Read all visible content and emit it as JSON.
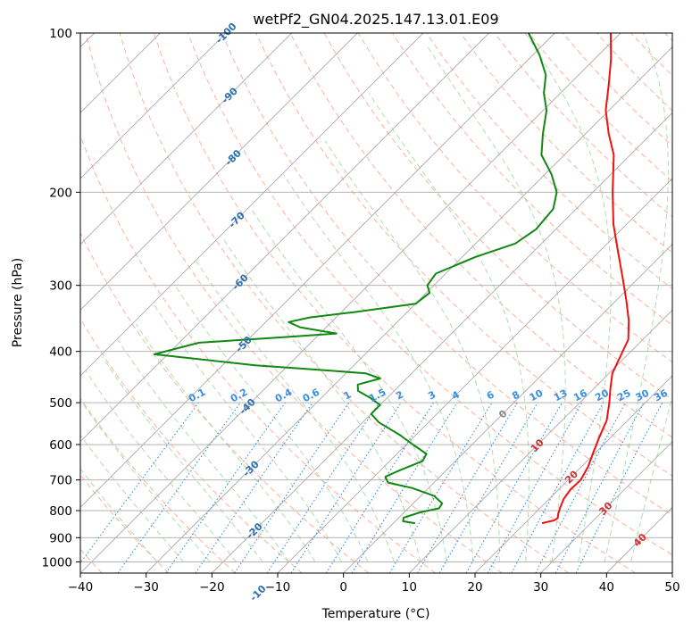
{
  "chart_data": {
    "type": "skew-t",
    "title": "wetPf2_GN04.2025.147.13.01.E09",
    "xlabel": "Temperature (°C)",
    "ylabel": "Pressure (hPa)",
    "xlim": [
      -40,
      50
    ],
    "ylim": [
      1050,
      100
    ],
    "y_scale": "log",
    "grid": true,
    "x_ticks": [
      -40,
      -30,
      -20,
      -10,
      0,
      10,
      20,
      30,
      40,
      50
    ],
    "y_ticks": [
      100,
      200,
      300,
      400,
      500,
      600,
      700,
      800,
      900,
      1000
    ],
    "isotherm_labels": [
      "-100",
      "-90",
      "-80",
      "-70",
      "-60",
      "-50",
      "-40",
      "-30",
      "-20",
      "-10",
      "0",
      "10",
      "20",
      "30",
      "40"
    ],
    "mixing_ratio_labels": [
      "0.1",
      "0.2",
      "0.4",
      "0.6",
      "1",
      "1.5",
      "2",
      "3",
      "4",
      "6",
      "8",
      "10",
      "13",
      "16",
      "20",
      "25",
      "30",
      "36"
    ],
    "colors": {
      "temperature": "#ee1111",
      "dewpoint": "#118811",
      "isotherm_label_cold": "#2a6fb0",
      "isotherm_label_zero": "#888888",
      "isotherm_label_warm": "#d03030",
      "mixing_ratio": "#3a8de0",
      "dry_adiabat": "#ffb09a",
      "moist_adiabat": "#b0dcb0",
      "grid": "#aaaaaa"
    },
    "series": [
      {
        "key": "temperature",
        "points": [
          {
            "p": 845,
            "t": 22.6
          },
          {
            "p": 835,
            "t": 24.0
          },
          {
            "p": 826,
            "t": 24.2
          },
          {
            "p": 810,
            "t": 23.6
          },
          {
            "p": 790,
            "t": 23.0
          },
          {
            "p": 760,
            "t": 22.2
          },
          {
            "p": 730,
            "t": 21.8
          },
          {
            "p": 700,
            "t": 21.9
          },
          {
            "p": 660,
            "t": 21.0
          },
          {
            "p": 620,
            "t": 19.6
          },
          {
            "p": 580,
            "t": 18.2
          },
          {
            "p": 540,
            "t": 16.8
          },
          {
            "p": 500,
            "t": 14.5
          },
          {
            "p": 470,
            "t": 12.5
          },
          {
            "p": 440,
            "t": 10.5
          },
          {
            "p": 410,
            "t": 9.2
          },
          {
            "p": 380,
            "t": 7.8
          },
          {
            "p": 350,
            "t": 5.0
          },
          {
            "p": 320,
            "t": 1.5
          },
          {
            "p": 290,
            "t": -2.5
          },
          {
            "p": 260,
            "t": -7.0
          },
          {
            "p": 230,
            "t": -12.0
          },
          {
            "p": 200,
            "t": -17.0
          },
          {
            "p": 170,
            "t": -22.5
          },
          {
            "p": 155,
            "t": -26.5
          },
          {
            "p": 140,
            "t": -30.5
          },
          {
            "p": 125,
            "t": -34.0
          },
          {
            "p": 112,
            "t": -37.5
          },
          {
            "p": 100,
            "t": -41.5
          }
        ]
      },
      {
        "key": "dewpoint",
        "points": [
          {
            "p": 845,
            "t": 3.3
          },
          {
            "p": 838,
            "t": 1.2
          },
          {
            "p": 825,
            "t": 0.7
          },
          {
            "p": 806,
            "t": 2.4
          },
          {
            "p": 792,
            "t": 4.7
          },
          {
            "p": 775,
            "t": 4.4
          },
          {
            "p": 750,
            "t": 2.0
          },
          {
            "p": 725,
            "t": -2.5
          },
          {
            "p": 708,
            "t": -7.0
          },
          {
            "p": 690,
            "t": -8.3
          },
          {
            "p": 670,
            "t": -7.0
          },
          {
            "p": 645,
            "t": -5.0
          },
          {
            "p": 625,
            "t": -5.5
          },
          {
            "p": 600,
            "t": -9.0
          },
          {
            "p": 575,
            "t": -12.5
          },
          {
            "p": 545,
            "t": -17.5
          },
          {
            "p": 525,
            "t": -20.0
          },
          {
            "p": 505,
            "t": -20.0
          },
          {
            "p": 490,
            "t": -22.5
          },
          {
            "p": 475,
            "t": -25.5
          },
          {
            "p": 462,
            "t": -26.5
          },
          {
            "p": 450,
            "t": -24.0
          },
          {
            "p": 440,
            "t": -27.0
          },
          {
            "p": 433,
            "t": -35.0
          },
          {
            "p": 425,
            "t": -45.0
          },
          {
            "p": 405,
            "t": -62.0
          },
          {
            "p": 385,
            "t": -57.0
          },
          {
            "p": 376,
            "t": -45.0
          },
          {
            "p": 370,
            "t": -37.5
          },
          {
            "p": 360,
            "t": -44.0
          },
          {
            "p": 352,
            "t": -46.5
          },
          {
            "p": 345,
            "t": -44.0
          },
          {
            "p": 337,
            "t": -38.0
          },
          {
            "p": 325,
            "t": -30.0
          },
          {
            "p": 310,
            "t": -29.5
          },
          {
            "p": 300,
            "t": -31.0
          },
          {
            "p": 285,
            "t": -31.5
          },
          {
            "p": 265,
            "t": -28.0
          },
          {
            "p": 250,
            "t": -24.0
          },
          {
            "p": 235,
            "t": -23.0
          },
          {
            "p": 215,
            "t": -23.5
          },
          {
            "p": 200,
            "t": -25.5
          },
          {
            "p": 185,
            "t": -29.0
          },
          {
            "p": 170,
            "t": -33.5
          },
          {
            "p": 155,
            "t": -36.5
          },
          {
            "p": 140,
            "t": -39.5
          },
          {
            "p": 130,
            "t": -42.5
          },
          {
            "p": 120,
            "t": -45.0
          },
          {
            "p": 110,
            "t": -49.0
          },
          {
            "p": 100,
            "t": -54.0
          }
        ]
      }
    ]
  }
}
